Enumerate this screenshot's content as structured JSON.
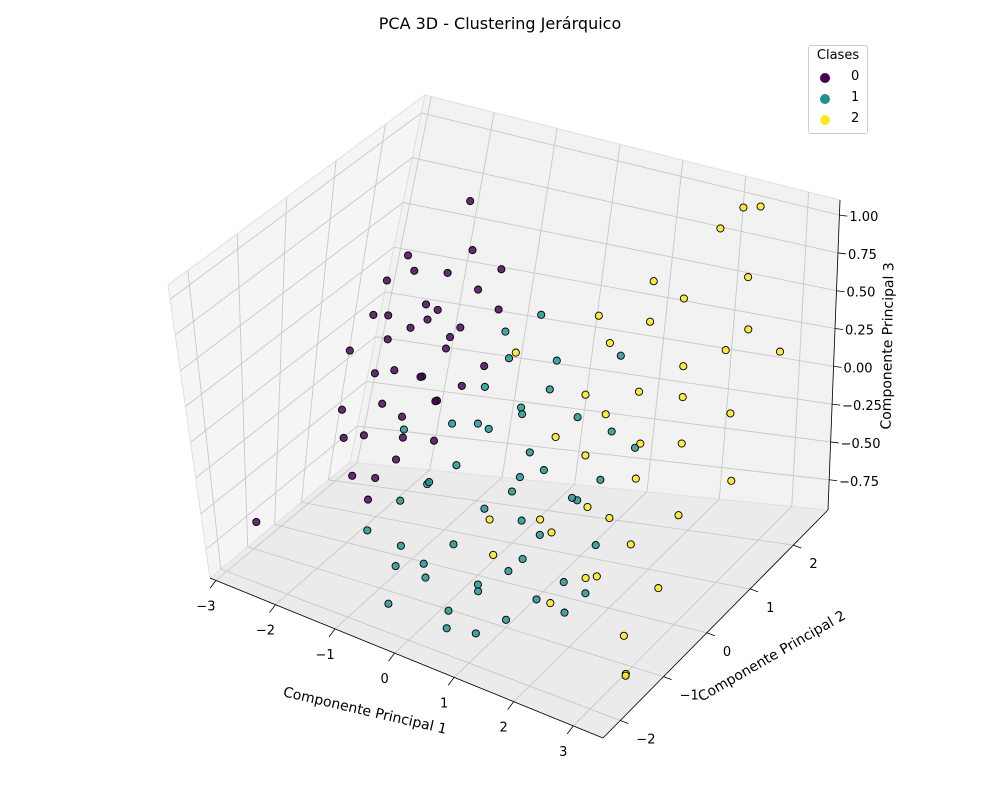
{
  "chart_data": {
    "type": "scatter",
    "title": "PCA 3D - Clustering Jerárquico",
    "xlabel": "Componente Principal 1",
    "ylabel": "Componente Principal 2",
    "zlabel": "Componente Principal 3",
    "xlim": [
      -3.1,
      3.5
    ],
    "ylim": [
      -2.4,
      2.8
    ],
    "zlim": [
      -0.95,
      1.1
    ],
    "xticks": [
      -3,
      -2,
      -1,
      0,
      1,
      2,
      3
    ],
    "yticks": [
      -2,
      -1,
      0,
      1,
      2
    ],
    "zticks": [
      -0.75,
      -0.5,
      -0.25,
      0.0,
      0.25,
      0.5,
      0.75,
      1.0
    ],
    "ztick_labels": [
      "−0.75",
      "−0.50",
      "−0.25",
      "0.00",
      "0.25",
      "0.50",
      "0.75",
      "1.00"
    ],
    "xtick_labels": [
      "−3",
      "−2",
      "−1",
      "0",
      "1",
      "2",
      "3"
    ],
    "ytick_labels": [
      "−2",
      "−1",
      "0",
      "1",
      "2"
    ],
    "grid": true,
    "legend": {
      "title": "Clases",
      "position": "top-right"
    },
    "colors": {
      "0": "#440154",
      "1": "#21918c",
      "2": "#fde725"
    },
    "series": [
      {
        "name": "0",
        "points": [
          [
            -2.4,
            0.6,
            0.1
          ],
          [
            -2.2,
            0.8,
            0.3
          ],
          [
            -2.1,
            0.9,
            0.5
          ],
          [
            -2.0,
            0.6,
            0.0
          ],
          [
            -2.3,
            0.3,
            -0.2
          ],
          [
            -1.9,
            0.7,
            0.2
          ],
          [
            -1.8,
            0.5,
            0.4
          ],
          [
            -1.7,
            0.9,
            0.6
          ],
          [
            -1.6,
            0.4,
            0.1
          ],
          [
            -1.5,
            1.0,
            0.3
          ],
          [
            -1.4,
            0.8,
            0.0
          ],
          [
            -1.3,
            0.6,
            0.5
          ],
          [
            -1.2,
            1.1,
            0.2
          ],
          [
            -1.9,
            0.2,
            -0.3
          ],
          [
            -1.7,
            0.3,
            -0.1
          ],
          [
            -1.5,
            0.5,
            -0.2
          ],
          [
            -1.4,
            0.2,
            -0.4
          ],
          [
            -1.6,
            0.0,
            -0.5
          ],
          [
            -1.3,
            0.9,
            0.4
          ],
          [
            -1.2,
            0.4,
            0.1
          ],
          [
            -1.1,
            1.3,
            0.7
          ],
          [
            -1.0,
            1.0,
            0.3
          ],
          [
            -1.1,
            0.7,
            -0.1
          ],
          [
            -0.9,
            1.2,
            0.5
          ],
          [
            -0.8,
            0.8,
            0.0
          ],
          [
            -2.0,
            1.2,
            0.6
          ],
          [
            -1.8,
            1.1,
            0.2
          ],
          [
            -1.5,
            1.4,
            0.5
          ],
          [
            -1.3,
            1.2,
            0.1
          ],
          [
            -1.0,
            0.5,
            -0.3
          ],
          [
            -0.7,
            1.4,
            0.6
          ],
          [
            -0.6,
            1.0,
            0.1
          ],
          [
            -2.1,
            0.0,
            -0.3
          ],
          [
            -1.9,
            -0.1,
            -0.5
          ],
          [
            -1.6,
            -0.2,
            -0.6
          ],
          [
            -1.2,
            0.0,
            -0.2
          ],
          [
            -0.9,
            0.3,
            0.0
          ],
          [
            -2.8,
            -1.3,
            -0.7
          ],
          [
            -1.4,
            1.6,
            0.9
          ],
          [
            -0.8,
            1.6,
            0.3
          ]
        ]
      },
      {
        "name": "1",
        "points": [
          [
            -1.4,
            -0.6,
            -0.7
          ],
          [
            -1.3,
            0.2,
            -0.2
          ],
          [
            -1.0,
            -0.4,
            -0.5
          ],
          [
            -0.8,
            -0.9,
            -0.8
          ],
          [
            -0.6,
            -1.1,
            -0.6
          ],
          [
            -0.5,
            -0.5,
            -0.3
          ],
          [
            -0.4,
            -0.1,
            0.0
          ],
          [
            -0.3,
            -1.0,
            -0.7
          ],
          [
            -0.2,
            -0.3,
            -0.2
          ],
          [
            -0.1,
            0.2,
            0.2
          ],
          [
            0.0,
            -0.7,
            -0.6
          ],
          [
            0.1,
            0.0,
            0.0
          ],
          [
            0.2,
            -1.2,
            -0.9
          ],
          [
            0.3,
            -0.4,
            -0.4
          ],
          [
            0.4,
            0.3,
            0.1
          ],
          [
            0.5,
            -0.9,
            -0.8
          ],
          [
            0.6,
            -0.2,
            -0.3
          ],
          [
            0.7,
            0.5,
            0.2
          ],
          [
            0.8,
            -0.6,
            -0.7
          ],
          [
            0.9,
            0.1,
            -0.2
          ],
          [
            1.0,
            -1.0,
            -0.9
          ],
          [
            1.1,
            -0.3,
            -0.5
          ],
          [
            1.2,
            0.4,
            0.1
          ],
          [
            1.3,
            -0.7,
            -0.8
          ],
          [
            1.4,
            0.0,
            -0.3
          ],
          [
            1.5,
            0.9,
            0.4
          ],
          [
            1.6,
            -0.5,
            -0.7
          ],
          [
            1.7,
            0.2,
            -0.2
          ],
          [
            1.8,
            -0.8,
            -0.8
          ],
          [
            1.9,
            -0.2,
            -0.5
          ],
          [
            0.2,
            1.0,
            0.5
          ],
          [
            0.0,
            0.6,
            0.3
          ],
          [
            -0.2,
            0.8,
            0.4
          ],
          [
            0.4,
            -1.6,
            -0.9
          ],
          [
            0.8,
            -1.4,
            -0.6
          ],
          [
            1.0,
            -1.8,
            -0.8
          ],
          [
            -0.6,
            -1.5,
            -0.9
          ],
          [
            0.6,
            0.8,
            0.3
          ],
          [
            1.2,
            -0.9,
            -0.5
          ],
          [
            0.3,
            0.5,
            0.0
          ],
          [
            -0.7,
            -0.2,
            -0.4
          ],
          [
            1.6,
            0.6,
            0.0
          ],
          [
            0.9,
            -0.5,
            -0.1
          ],
          [
            -0.3,
            0.4,
            -0.1
          ],
          [
            1.3,
            0.3,
            -0.4
          ],
          [
            2.0,
            -0.6,
            -0.7
          ],
          [
            -0.1,
            -1.3,
            -0.7
          ],
          [
            0.7,
            -0.1,
            -0.5
          ],
          [
            0.5,
            0.4,
            -0.2
          ],
          [
            1.9,
            0.7,
            -0.1
          ]
        ]
      },
      {
        "name": "2",
        "points": [
          [
            0.8,
            -1.0,
            -0.5
          ],
          [
            1.0,
            0.2,
            0.0
          ],
          [
            1.2,
            1.1,
            0.4
          ],
          [
            1.4,
            -0.5,
            -0.4
          ],
          [
            1.5,
            0.6,
            0.1
          ],
          [
            1.6,
            1.4,
            0.5
          ],
          [
            1.7,
            -0.1,
            -0.3
          ],
          [
            1.8,
            0.9,
            0.2
          ],
          [
            1.9,
            1.7,
            0.6
          ],
          [
            2.0,
            -0.6,
            -0.6
          ],
          [
            2.1,
            0.5,
            0.0
          ],
          [
            2.2,
            1.3,
            0.3
          ],
          [
            2.3,
            0.1,
            -0.1
          ],
          [
            2.4,
            1.0,
            0.2
          ],
          [
            2.5,
            -0.3,
            -0.4
          ],
          [
            2.6,
            0.7,
            0.0
          ],
          [
            2.7,
            1.5,
            0.4
          ],
          [
            2.8,
            -0.9,
            -0.8
          ],
          [
            2.9,
            0.2,
            -0.3
          ],
          [
            3.0,
            1.2,
            0.1
          ],
          [
            3.1,
            -1.3,
            -0.9
          ],
          [
            3.2,
            2.0,
            0.3
          ],
          [
            3.3,
            0.8,
            -0.2
          ],
          [
            3.3,
            -1.6,
            -0.8
          ],
          [
            2.0,
            2.3,
            0.9
          ],
          [
            2.2,
            2.5,
            1.0
          ],
          [
            2.4,
            2.6,
            1.0
          ],
          [
            1.3,
            1.9,
            0.6
          ],
          [
            0.7,
            1.6,
            0.4
          ],
          [
            -0.2,
            1.1,
            0.2
          ],
          [
            1.1,
            -0.3,
            -0.4
          ],
          [
            1.7,
            -1.0,
            -0.7
          ],
          [
            2.3,
            -0.8,
            -0.5
          ],
          [
            0.5,
            -0.6,
            -0.4
          ],
          [
            1.0,
            0.9,
            0.1
          ],
          [
            2.6,
            2.1,
            0.7
          ],
          [
            3.0,
            -0.4,
            -0.6
          ],
          [
            1.4,
            0.3,
            -0.1
          ],
          [
            2.1,
            -0.2,
            -0.3
          ],
          [
            2.9,
            1.7,
            0.5
          ]
        ]
      }
    ]
  }
}
